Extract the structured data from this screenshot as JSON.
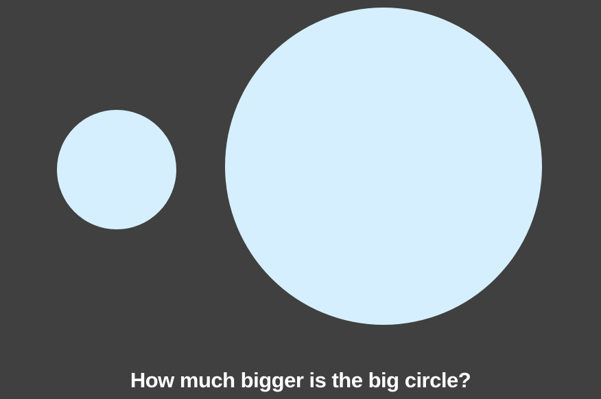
{
  "question": "How much bigger is the big circle?",
  "colors": {
    "background": "#404040",
    "circle_fill": "#d6efff",
    "text": "#ffffff"
  },
  "circles": [
    {
      "id": "small"
    },
    {
      "id": "big"
    }
  ]
}
